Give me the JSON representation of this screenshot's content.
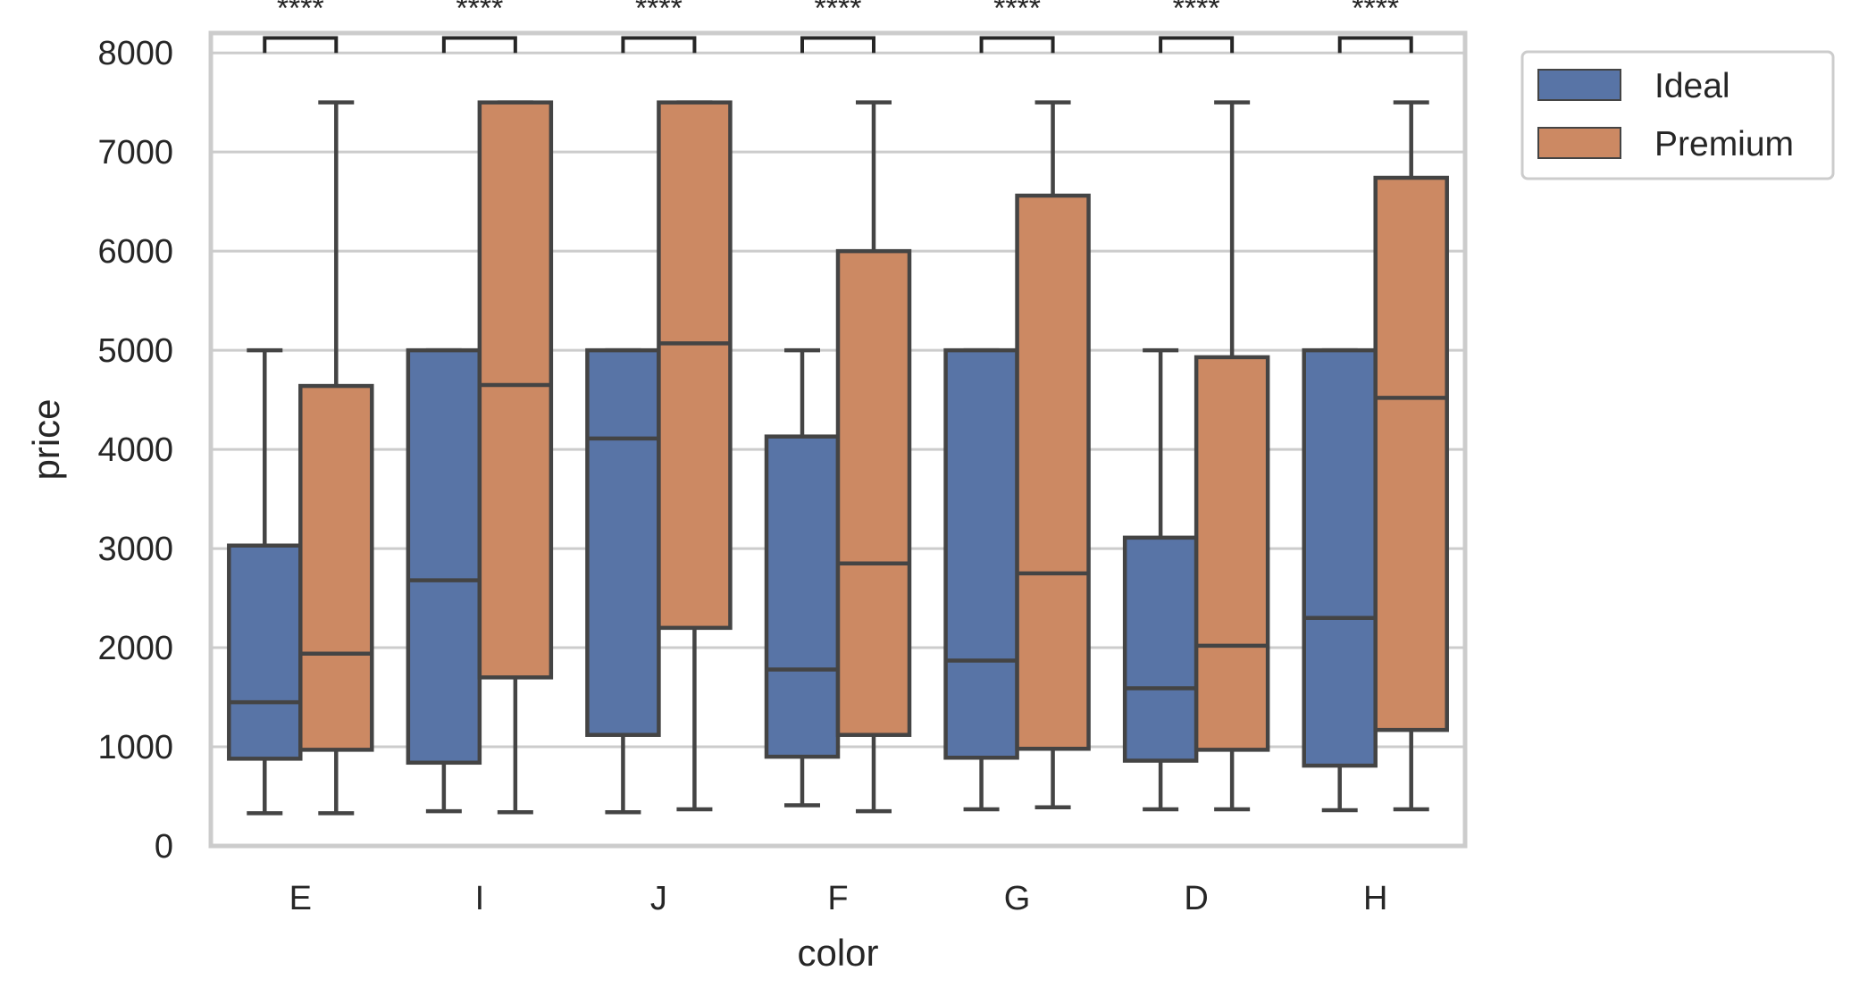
{
  "chart_data": {
    "type": "box",
    "xlabel": "color",
    "ylabel": "price",
    "ylim": [
      0,
      8200
    ],
    "yticks": [
      0,
      1000,
      2000,
      3000,
      4000,
      5000,
      6000,
      7000,
      8000
    ],
    "ytick_labels": [
      "0",
      "1000",
      "2000",
      "3000",
      "4000",
      "5000",
      "6000",
      "7000",
      "8000"
    ],
    "grid": true,
    "legend_position": "outside-top-right",
    "categories": [
      "E",
      "I",
      "J",
      "F",
      "G",
      "D",
      "H"
    ],
    "series": [
      {
        "name": "Ideal",
        "color": "#5874a6",
        "boxes": [
          {
            "whislo": 330,
            "q1": 880,
            "med": 1450,
            "q3": 3030,
            "whishi": 5000
          },
          {
            "whislo": 350,
            "q1": 840,
            "med": 2680,
            "q3": 5000,
            "whishi": 5000
          },
          {
            "whislo": 340,
            "q1": 1120,
            "med": 4110,
            "q3": 5000,
            "whishi": 5000
          },
          {
            "whislo": 410,
            "q1": 900,
            "med": 1780,
            "q3": 4130,
            "whishi": 5000
          },
          {
            "whislo": 370,
            "q1": 890,
            "med": 1870,
            "q3": 5000,
            "whishi": 5000
          },
          {
            "whislo": 370,
            "q1": 860,
            "med": 1590,
            "q3": 3110,
            "whishi": 5000
          },
          {
            "whislo": 360,
            "q1": 810,
            "med": 2300,
            "q3": 5000,
            "whishi": 5000
          }
        ]
      },
      {
        "name": "Premium",
        "color": "#cc8963",
        "boxes": [
          {
            "whislo": 330,
            "q1": 970,
            "med": 1940,
            "q3": 4640,
            "whishi": 7500
          },
          {
            "whislo": 340,
            "q1": 1700,
            "med": 4650,
            "q3": 7500,
            "whishi": 7500
          },
          {
            "whislo": 370,
            "q1": 2200,
            "med": 5070,
            "q3": 7500,
            "whishi": 7500
          },
          {
            "whislo": 350,
            "q1": 1120,
            "med": 2850,
            "q3": 6000,
            "whishi": 7500
          },
          {
            "whislo": 390,
            "q1": 980,
            "med": 2750,
            "q3": 6560,
            "whishi": 7500
          },
          {
            "whislo": 370,
            "q1": 970,
            "med": 2020,
            "q3": 4930,
            "whishi": 7500
          },
          {
            "whislo": 370,
            "q1": 1170,
            "med": 4520,
            "q3": 6740,
            "whishi": 7500
          }
        ]
      }
    ],
    "annotations": {
      "label": "****",
      "bracket_bottom": 8000,
      "bracket_top": 8150
    }
  }
}
